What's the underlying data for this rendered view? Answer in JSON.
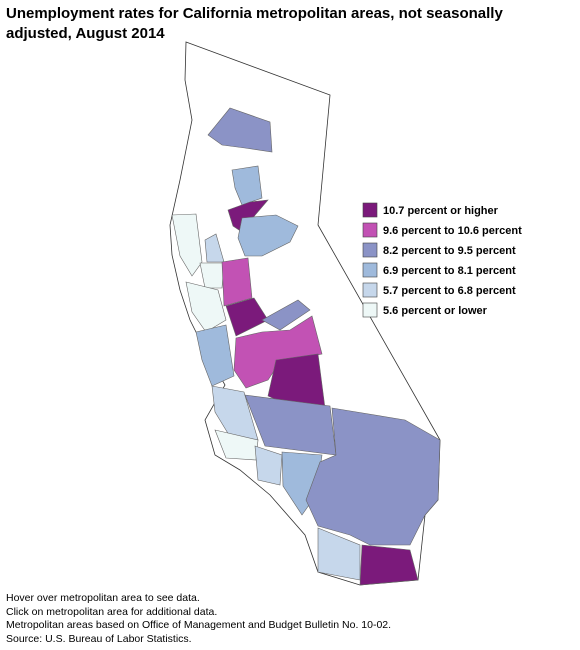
{
  "title": "Unemployment rates for California metropolitan areas, not seasonally adjusted, August 2014",
  "legend": [
    {
      "label": "10.7 percent or higher",
      "color": "#7b1a7b"
    },
    {
      "label": "9.6 percent to 10.6 percent",
      "color": "#c252b4"
    },
    {
      "label": "8.2 percent to 9.5 percent",
      "color": "#8b93c6"
    },
    {
      "label": "6.9 percent to 8.1 percent",
      "color": "#9fbadc"
    },
    {
      "label": "5.7 percent to 6.8 percent",
      "color": "#c6d7eb"
    },
    {
      "label": "5.6 percent or lower",
      "color": "#eef8f7"
    }
  ],
  "notes": [
    "Hover over metropolitan area to see data.",
    "Click on metropolitan area for additional data.",
    "Metropolitan areas based on Office of Management and Budget Bulletin No. 10-02.",
    "Source: U.S. Bureau of Labor Statistics."
  ]
}
